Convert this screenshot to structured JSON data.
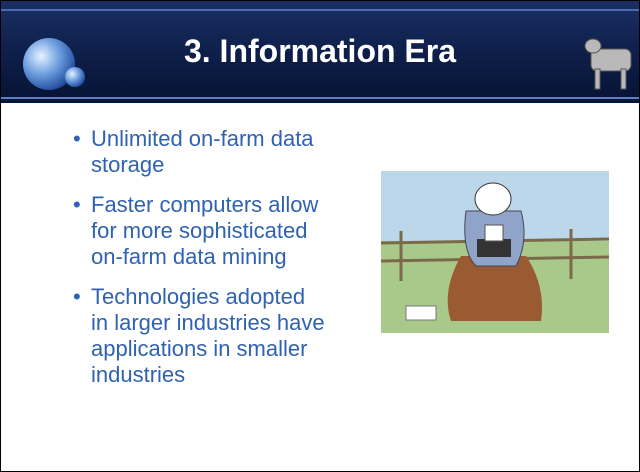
{
  "header": {
    "title": "3. Information Era"
  },
  "bullets": [
    [
      "Unlimited on-farm data",
      "storage"
    ],
    [
      "Faster computers allow",
      "for more sophisticated",
      "on-farm data mining"
    ],
    [
      "Technologies adopted",
      "in larger industries have",
      "applications in smaller",
      "industries"
    ]
  ]
}
